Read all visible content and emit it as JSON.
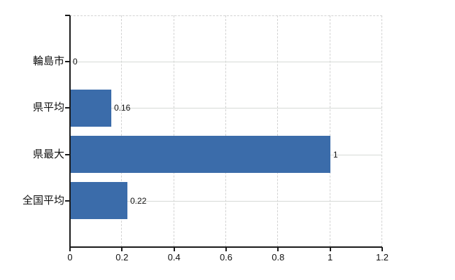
{
  "chart_data": {
    "type": "bar",
    "orientation": "horizontal",
    "title": "",
    "categories": [
      "輪島市",
      "県平均",
      "県最大",
      "全国平均"
    ],
    "values": [
      0,
      0.16,
      1,
      0.22
    ],
    "value_labels": [
      "0",
      "0.16",
      "1",
      "0.22"
    ],
    "x_ticks": [
      0,
      0.2,
      0.4,
      0.6,
      0.8,
      1,
      1.2
    ],
    "x_tick_labels": [
      "0",
      "0.2",
      "0.4",
      "0.6",
      "0.8",
      "1",
      "1.2"
    ],
    "xlim": [
      0,
      1.2
    ],
    "xlabel": "",
    "ylabel": "",
    "legend": null,
    "grid": true,
    "bar_color": "#3b6caa"
  }
}
